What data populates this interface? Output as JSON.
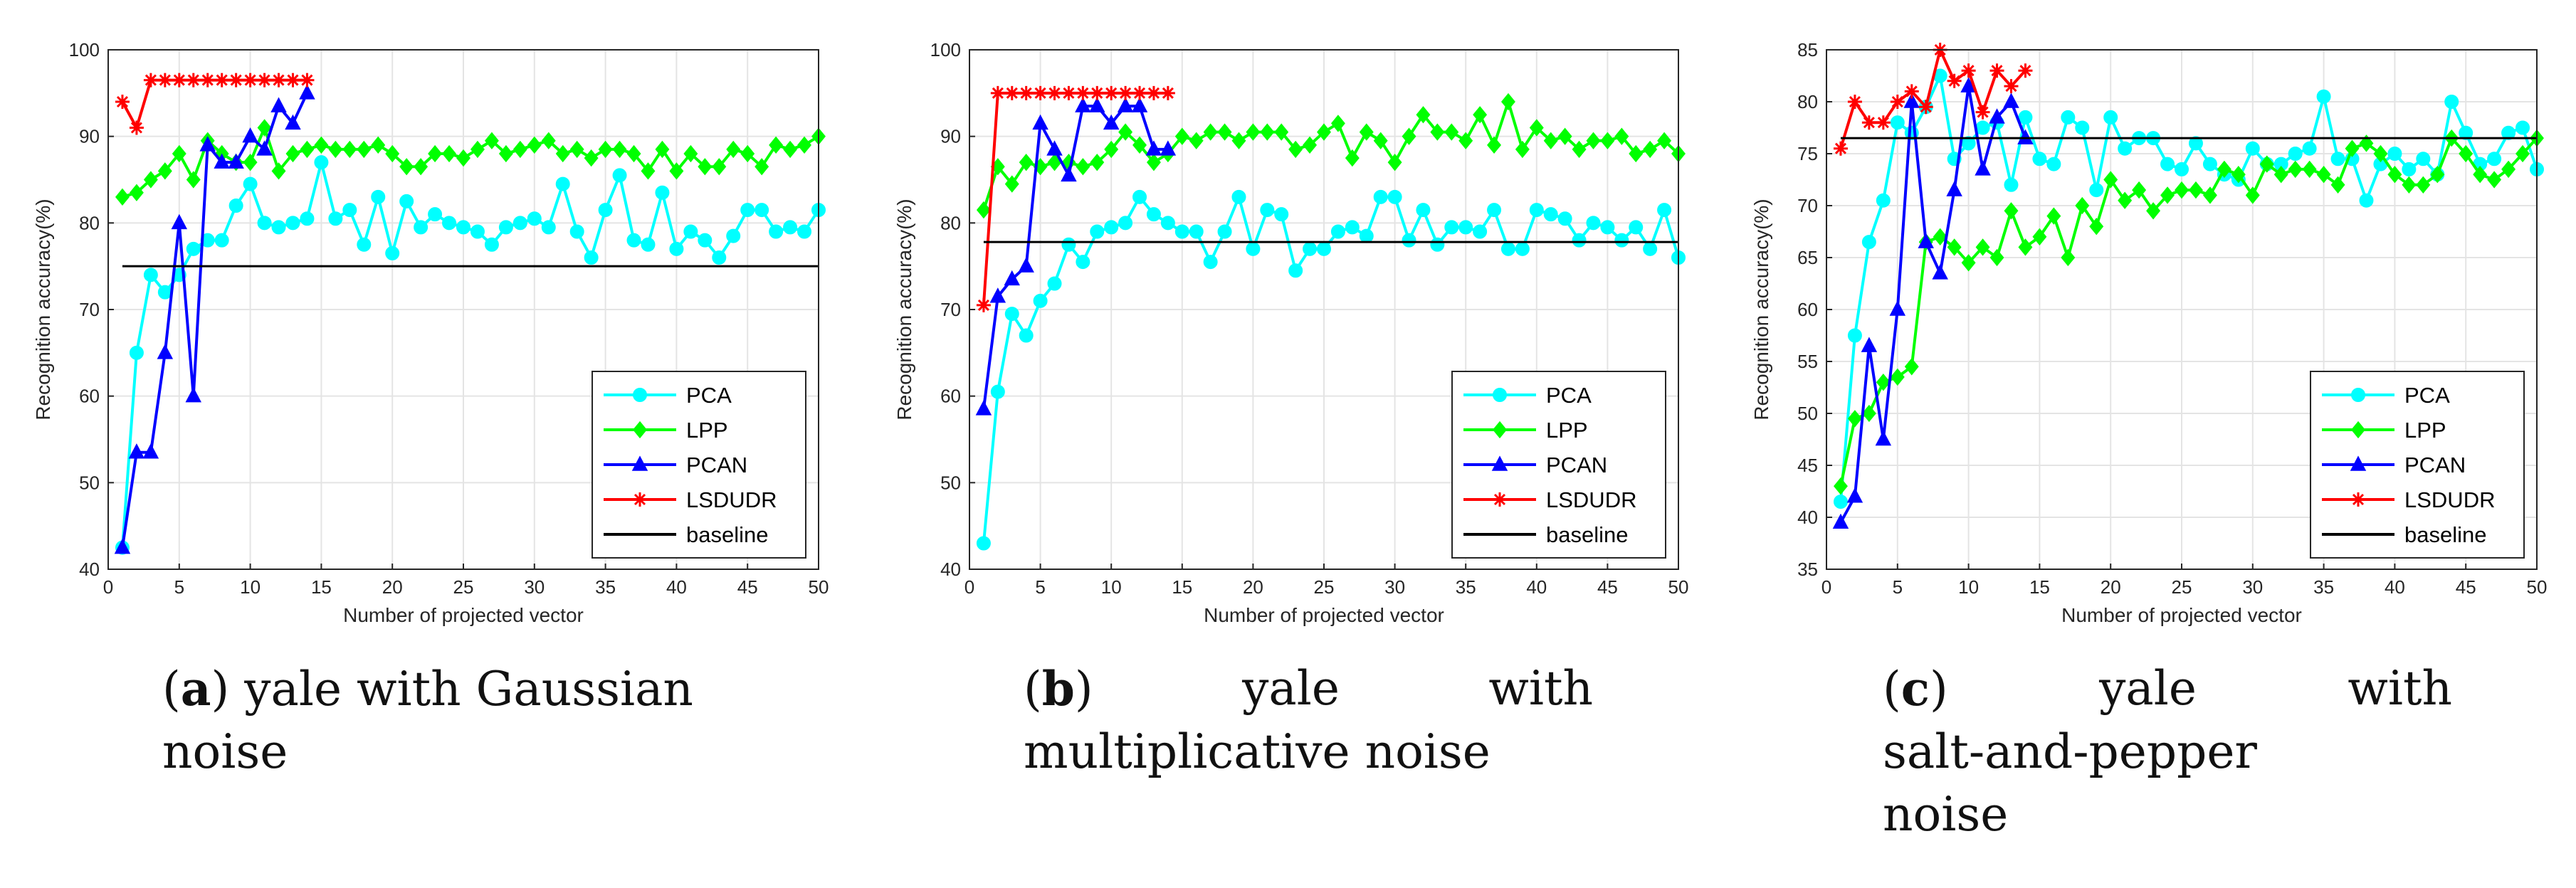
{
  "captions": [
    {
      "label": "a",
      "text": "yale with Gaussian noise",
      "line1": "yale with Gaussian",
      "line2": "noise"
    },
    {
      "label": "b",
      "text": "yale with multiplicative noise",
      "w1": "yale",
      "w2": "with",
      "line2": "multiplicative noise"
    },
    {
      "label": "c",
      "text": "yale with salt-and-pepper noise",
      "w1": "yale",
      "w2": "with",
      "line2": "salt-and-pepper",
      "line3": "noise"
    }
  ],
  "colors": {
    "PCA": "#00ffff",
    "LPP": "#00ff00",
    "PCAN": "#0000ff",
    "LSDUDR": "#ff0000",
    "baseline": "#000000"
  },
  "chart_data": [
    {
      "type": "line",
      "panel": "a",
      "xlabel": "Number of projected vector",
      "ylabel": "Recognition accuracy(%)",
      "xlim": [
        0,
        50
      ],
      "ylim": [
        40,
        100
      ],
      "xticks": [
        0,
        5,
        10,
        15,
        20,
        25,
        30,
        35,
        40,
        45,
        50
      ],
      "yticks": [
        40,
        50,
        60,
        70,
        80,
        90,
        100
      ],
      "grid": true,
      "legend": "bottom-right",
      "series": [
        {
          "name": "PCA",
          "marker": "circle",
          "x_start": 1,
          "values": [
            42.5,
            65,
            74,
            72,
            74,
            77,
            78,
            78,
            82,
            84.5,
            80,
            79.5,
            80,
            80.5,
            87,
            80.5,
            81.5,
            77.5,
            83,
            76.5,
            82.5,
            79.5,
            81,
            80,
            79.5,
            79,
            77.5,
            79.5,
            80,
            80.5,
            79.5,
            84.5,
            79,
            76,
            81.5,
            85.5,
            78,
            77.5,
            83.5,
            77,
            79,
            78,
            76,
            78.5,
            81.5,
            81.5,
            79,
            79.5,
            79,
            81.5
          ]
        },
        {
          "name": "LPP",
          "marker": "diamond",
          "x_start": 1,
          "values": [
            83,
            83.5,
            85,
            86,
            88,
            85,
            89.5,
            88,
            87,
            87,
            91,
            86,
            88,
            88.5,
            89,
            88.5,
            88.5,
            88.5,
            89,
            88,
            86.5,
            86.5,
            88,
            88,
            87.5,
            88.5,
            89.5,
            88,
            88.5,
            89,
            89.5,
            88,
            88.5,
            87.5,
            88.5,
            88.5,
            88,
            86,
            88.5,
            86,
            88,
            86.5,
            86.5,
            88.5,
            88,
            86.5,
            89,
            88.5,
            89,
            90
          ]
        },
        {
          "name": "PCAN",
          "marker": "triangle",
          "x_start": 1,
          "values": [
            42.5,
            53.5,
            53.5,
            65,
            80,
            60,
            89,
            87,
            87,
            90,
            88.5,
            93.5,
            91.5,
            95
          ]
        },
        {
          "name": "LSDUDR",
          "marker": "star",
          "x_start": 1,
          "values": [
            94,
            91,
            96.5,
            96.5,
            96.5,
            96.5,
            96.5,
            96.5,
            96.5,
            96.5,
            96.5,
            96.5,
            96.5,
            96.5
          ]
        },
        {
          "name": "baseline",
          "marker": "none",
          "x": [
            1,
            50
          ],
          "values": [
            75,
            75
          ]
        }
      ]
    },
    {
      "type": "line",
      "panel": "b",
      "xlabel": "Number of projected vector",
      "ylabel": "Recognition accuracy(%)",
      "xlim": [
        0,
        50
      ],
      "ylim": [
        40,
        100
      ],
      "xticks": [
        0,
        5,
        10,
        15,
        20,
        25,
        30,
        35,
        40,
        45,
        50
      ],
      "yticks": [
        40,
        50,
        60,
        70,
        80,
        90,
        100
      ],
      "grid": true,
      "legend": "bottom-right",
      "series": [
        {
          "name": "PCA",
          "marker": "circle",
          "x_start": 1,
          "values": [
            43,
            60.5,
            69.5,
            67,
            71,
            73,
            77.5,
            75.5,
            79,
            79.5,
            80,
            83,
            81,
            80,
            79,
            79,
            75.5,
            79,
            83,
            77,
            81.5,
            81,
            74.5,
            77,
            77,
            79,
            79.5,
            78.5,
            83,
            83,
            78,
            81.5,
            77.5,
            79.5,
            79.5,
            79,
            81.5,
            77,
            77,
            81.5,
            81,
            80.5,
            78,
            80,
            79.5,
            78,
            79.5,
            77,
            81.5,
            76
          ]
        },
        {
          "name": "LPP",
          "marker": "diamond",
          "x_start": 1,
          "values": [
            81.5,
            86.5,
            84.5,
            87,
            86.5,
            87,
            87,
            86.5,
            87,
            88.5,
            90.5,
            89,
            87,
            88,
            90,
            89.5,
            90.5,
            90.5,
            89.5,
            90.5,
            90.5,
            90.5,
            88.5,
            89,
            90.5,
            91.5,
            87.5,
            90.5,
            89.5,
            87,
            90,
            92.5,
            90.5,
            90.5,
            89.5,
            92.5,
            89,
            94,
            88.5,
            91,
            89.5,
            90,
            88.5,
            89.5,
            89.5,
            90,
            88,
            88.5,
            89.5,
            88
          ]
        },
        {
          "name": "PCAN",
          "marker": "triangle",
          "x_start": 1,
          "values": [
            58.5,
            71.5,
            73.5,
            75,
            91.5,
            88.5,
            85.5,
            93.5,
            93.5,
            91.5,
            93.5,
            93.5,
            88.5,
            88.5
          ]
        },
        {
          "name": "LSDUDR",
          "marker": "star",
          "x_start": 1,
          "values": [
            70.5,
            95,
            95,
            95,
            95,
            95,
            95,
            95,
            95,
            95,
            95,
            95,
            95,
            95
          ]
        },
        {
          "name": "baseline",
          "marker": "none",
          "x": [
            1,
            50
          ],
          "values": [
            77.8,
            77.8
          ]
        }
      ]
    },
    {
      "type": "line",
      "panel": "c",
      "xlabel": "Number of projected vector",
      "ylabel": "Recognition accuracy(%)",
      "xlim": [
        0,
        50
      ],
      "ylim": [
        35,
        85
      ],
      "xticks": [
        0,
        5,
        10,
        15,
        20,
        25,
        30,
        35,
        40,
        45,
        50
      ],
      "yticks": [
        35,
        40,
        45,
        50,
        55,
        60,
        65,
        70,
        75,
        80,
        85
      ],
      "grid": true,
      "legend": "bottom-right",
      "series": [
        {
          "name": "PCA",
          "marker": "circle",
          "x_start": 1,
          "values": [
            41.5,
            57.5,
            66.5,
            70.5,
            78,
            77,
            79.5,
            82.5,
            74.5,
            76,
            77.5,
            78,
            72,
            78.5,
            74.5,
            74,
            78.5,
            77.5,
            71.5,
            78.5,
            75.5,
            76.5,
            76.5,
            74,
            73.5,
            76,
            74,
            73,
            72.5,
            75.5,
            74,
            74,
            75,
            75.5,
            80.5,
            74.5,
            74.5,
            70.5,
            74,
            75,
            73.5,
            74.5,
            73,
            80,
            77,
            74,
            74.5,
            77,
            77.5,
            73.5
          ]
        },
        {
          "name": "LPP",
          "marker": "diamond",
          "x_start": 1,
          "values": [
            43,
            49.5,
            50,
            53,
            53.5,
            54.5,
            66.5,
            67,
            66,
            64.5,
            66,
            65,
            69.5,
            66,
            67,
            69,
            65,
            70,
            68,
            72.5,
            70.5,
            71.5,
            69.5,
            71,
            71.5,
            71.5,
            71,
            73.5,
            73,
            71,
            74,
            73,
            73.5,
            73.5,
            73,
            72,
            75.5,
            76,
            75,
            73,
            72,
            72,
            73,
            76.5,
            75,
            73,
            72.5,
            73.5,
            75,
            76.5
          ]
        },
        {
          "name": "PCAN",
          "marker": "triangle",
          "x_start": 1,
          "values": [
            39.5,
            42,
            56.5,
            47.5,
            60,
            80,
            66.5,
            63.5,
            71.5,
            81.5,
            73.5,
            78.5,
            80,
            76.5
          ]
        },
        {
          "name": "LSDUDR",
          "marker": "star",
          "x_start": 1,
          "values": [
            75.5,
            80,
            78,
            78,
            80,
            81,
            79.5,
            85,
            82,
            83,
            79,
            83,
            81.5,
            83
          ]
        },
        {
          "name": "baseline",
          "marker": "none",
          "x": [
            1,
            50
          ],
          "values": [
            76.5,
            76.5
          ]
        }
      ]
    }
  ]
}
